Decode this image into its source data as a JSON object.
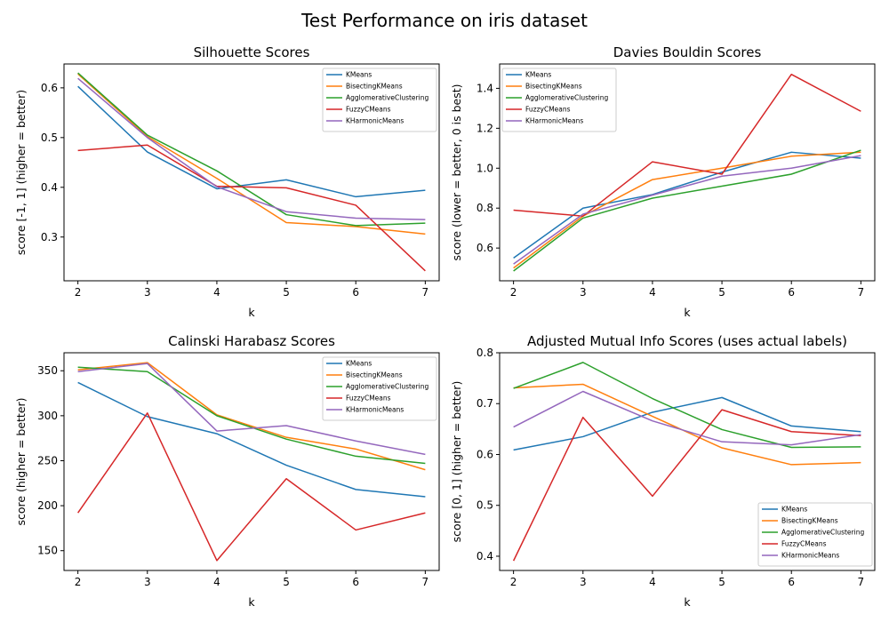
{
  "figure": {
    "suptitle": "Test Performance on iris dataset"
  },
  "colors": {
    "KMeans": "#1f77b4",
    "BisectingKMeans": "#ff7f0e",
    "AgglomerativeClustering": "#2ca02c",
    "FuzzyCMeans": "#d62728",
    "KHarmonicMeans": "#9467bd"
  },
  "chart_data": [
    {
      "type": "line",
      "title": "Silhouette Scores",
      "xlabel": "k",
      "ylabel": "score [-1, 1] (higher = better)",
      "x": [
        2,
        3,
        4,
        5,
        6,
        7
      ],
      "xlim": [
        1.8,
        7.2
      ],
      "ylim": [
        0.212,
        0.648
      ],
      "yticks": [
        0.3,
        0.4,
        0.5,
        0.6
      ],
      "ytick_labels": [
        "0.3",
        "0.4",
        "0.5",
        "0.6"
      ],
      "legend": "upper right",
      "grid": false,
      "series": [
        {
          "name": "KMeans",
          "values": [
            0.603,
            0.471,
            0.397,
            0.415,
            0.381,
            0.394
          ]
        },
        {
          "name": "BisectingKMeans",
          "values": [
            0.628,
            0.502,
            0.418,
            0.329,
            0.321,
            0.306
          ]
        },
        {
          "name": "AgglomerativeClustering",
          "values": [
            0.63,
            0.505,
            0.433,
            0.345,
            0.323,
            0.328
          ]
        },
        {
          "name": "FuzzyCMeans",
          "values": [
            0.474,
            0.485,
            0.402,
            0.399,
            0.364,
            0.232
          ]
        },
        {
          "name": "KHarmonicMeans",
          "values": [
            0.619,
            0.5,
            0.401,
            0.351,
            0.338,
            0.335
          ]
        }
      ]
    },
    {
      "type": "line",
      "title": "Davies Bouldin Scores",
      "xlabel": "k",
      "ylabel": "score (lower = better, 0 is best)",
      "x": [
        2,
        3,
        4,
        5,
        6,
        7
      ],
      "xlim": [
        1.8,
        7.2
      ],
      "ylim": [
        0.436,
        1.522
      ],
      "yticks": [
        0.6,
        0.8,
        1.0,
        1.2,
        1.4
      ],
      "ytick_labels": [
        "0.6",
        "0.8",
        "1.0",
        "1.2",
        "1.4"
      ],
      "legend": "upper left",
      "grid": false,
      "series": [
        {
          "name": "KMeans",
          "values": [
            0.55,
            0.8,
            0.868,
            0.98,
            1.08,
            1.05
          ]
        },
        {
          "name": "BisectingKMeans",
          "values": [
            0.5,
            0.76,
            0.943,
            1.0,
            1.06,
            1.08
          ]
        },
        {
          "name": "AgglomerativeClustering",
          "values": [
            0.485,
            0.75,
            0.85,
            0.91,
            0.97,
            1.09
          ]
        },
        {
          "name": "FuzzyCMeans",
          "values": [
            0.79,
            0.76,
            1.032,
            0.97,
            1.47,
            1.285
          ]
        },
        {
          "name": "KHarmonicMeans",
          "values": [
            0.52,
            0.77,
            0.865,
            0.96,
            1.0,
            1.063
          ]
        }
      ]
    },
    {
      "type": "line",
      "title": "Calinski Harabasz Scores",
      "xlabel": "k",
      "ylabel": "score (higher = better)",
      "x": [
        2,
        3,
        4,
        5,
        6,
        7
      ],
      "xlim": [
        1.8,
        7.2
      ],
      "ylim": [
        128,
        370
      ],
      "yticks": [
        150,
        200,
        250,
        300,
        350
      ],
      "ytick_labels": [
        "150",
        "200",
        "250",
        "300",
        "350"
      ],
      "legend": "upper right",
      "grid": false,
      "series": [
        {
          "name": "KMeans",
          "values": [
            337,
            299,
            280,
            245,
            218,
            210
          ]
        },
        {
          "name": "BisectingKMeans",
          "values": [
            351,
            359,
            301,
            276,
            263,
            240
          ]
        },
        {
          "name": "AgglomerativeClustering",
          "values": [
            354,
            349,
            300,
            274,
            255,
            247
          ]
        },
        {
          "name": "FuzzyCMeans",
          "values": [
            192,
            303,
            139,
            230,
            173,
            192
          ]
        },
        {
          "name": "KHarmonicMeans",
          "values": [
            349,
            358,
            283,
            289,
            272,
            257
          ]
        }
      ]
    },
    {
      "type": "line",
      "title": "Adjusted Mutual Info Scores (uses actual labels)",
      "xlabel": "k",
      "ylabel": "score [0, 1] (higher = better)",
      "x": [
        2,
        3,
        4,
        5,
        6,
        7
      ],
      "xlim": [
        1.8,
        7.2
      ],
      "ylim": [
        0.372,
        0.8
      ],
      "yticks": [
        0.4,
        0.5,
        0.6,
        0.7,
        0.8
      ],
      "ytick_labels": [
        "0.4",
        "0.5",
        "0.6",
        "0.7",
        "0.8"
      ],
      "legend": "lower right",
      "grid": false,
      "series": [
        {
          "name": "KMeans",
          "values": [
            0.609,
            0.635,
            0.683,
            0.712,
            0.656,
            0.645
          ]
        },
        {
          "name": "BisectingKMeans",
          "values": [
            0.731,
            0.738,
            0.675,
            0.613,
            0.58,
            0.584
          ]
        },
        {
          "name": "AgglomerativeClustering",
          "values": [
            0.73,
            0.781,
            0.71,
            0.649,
            0.614,
            0.615
          ]
        },
        {
          "name": "FuzzyCMeans",
          "values": [
            0.391,
            0.673,
            0.518,
            0.688,
            0.645,
            0.637
          ]
        },
        {
          "name": "KHarmonicMeans",
          "values": [
            0.654,
            0.724,
            0.666,
            0.625,
            0.619,
            0.639
          ]
        }
      ]
    }
  ]
}
